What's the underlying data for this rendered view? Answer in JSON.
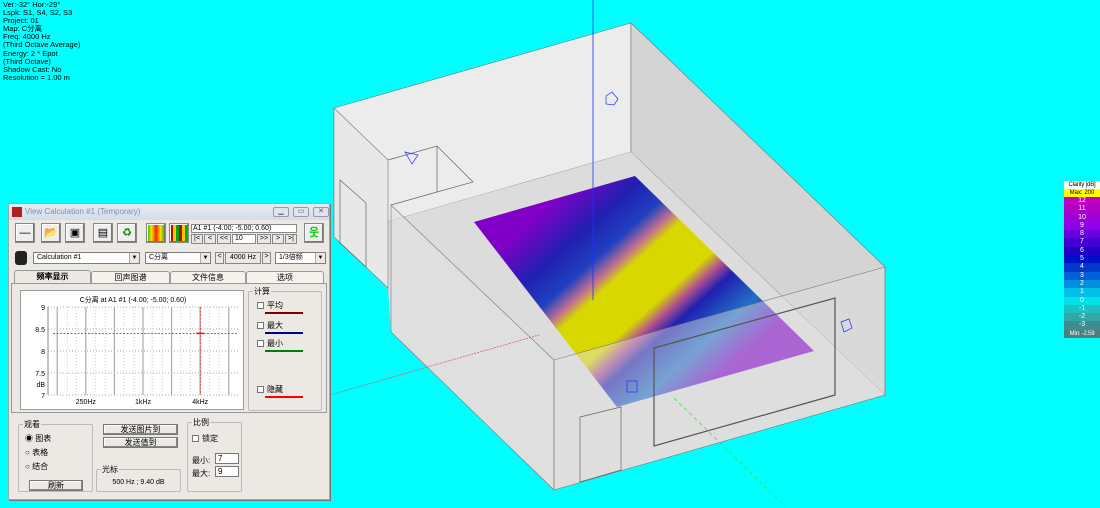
{
  "info": [
    "Ver:-32°   Hor:-29°",
    "Lspk: S1, S4, S2, S3",
    "Project: 01",
    "Map: C分离",
    "Freq: 4000 Hz",
    "(Third Octave Average)",
    "Energy: 2 * Epot",
    "(Third Octave)",
    "Shadow Cast: No",
    "Resolution =   1.00 m"
  ],
  "legend": {
    "header": "Clarity [dB]",
    "max": "Max:  200",
    "min": "Min: -2.59",
    "items": [
      {
        "label": "12",
        "color": "#c000c0"
      },
      {
        "label": "11",
        "color": "#b000c8"
      },
      {
        "label": "10",
        "color": "#a000d8"
      },
      {
        "label": "9",
        "color": "#9000e8"
      },
      {
        "label": "8",
        "color": "#6a00e0"
      },
      {
        "label": "7",
        "color": "#4400d0"
      },
      {
        "label": "6",
        "color": "#2000c8"
      },
      {
        "label": "5",
        "color": "#0010c8"
      },
      {
        "label": "4",
        "color": "#0038c8"
      },
      {
        "label": "3",
        "color": "#0060d8"
      },
      {
        "label": "2",
        "color": "#0090e0"
      },
      {
        "label": "1",
        "color": "#00c0e8"
      },
      {
        "label": "0",
        "color": "#00e0e8"
      },
      {
        "label": "-1",
        "color": "#20c0c0"
      },
      {
        "label": "-2",
        "color": "#30a8a8"
      },
      {
        "label": "-3",
        "color": "#408c8c"
      }
    ]
  },
  "dialog": {
    "title": "View Calculation #1 (Temporary)",
    "receiver": "A1 #1  (-4.00; -5.00; 0.60)",
    "nav": {
      "first": "|<",
      "prev": "<",
      "back": "<<",
      "value": "10",
      "fwd": ">>",
      "next": ">",
      "last": ">|"
    },
    "calc_select": "Calculation #1",
    "param_select": "C分离",
    "freq_prev": "<",
    "freq": "4000 Hz",
    "freq_next": ">",
    "band_select": "1/3倍频",
    "tabs": [
      "频率显示",
      "回声图谱",
      "文件信息",
      "选项"
    ],
    "chart_data": {
      "type": "line",
      "title": "C分离    at A1 #1  (-4.00; -5.00; 0.60)",
      "ylabel": "dB",
      "ylim": [
        7,
        9
      ],
      "yticks": [
        "9",
        "8.5",
        "8",
        "7.5",
        "7"
      ],
      "xticks": [
        "250Hz",
        "1kHz",
        "4kHz"
      ],
      "series": [
        {
          "x": "4kHz",
          "y": 8.4,
          "color": "#ff0000"
        }
      ]
    },
    "calc_group": {
      "label": "计算",
      "items": [
        {
          "label": "平均",
          "color": "#800000"
        },
        {
          "label": "最大",
          "color": "#000080"
        },
        {
          "label": "最小",
          "color": "#008000"
        },
        {
          "label": "隐藏",
          "color": "#ff0000"
        }
      ]
    },
    "view_group": {
      "label": "观看",
      "options": [
        "图表",
        "表格",
        "结合"
      ],
      "selected": "图表",
      "refresh": "刷新"
    },
    "send_image": "发送图片到",
    "send_values": "发送值到",
    "cursor_group": {
      "label": "光标",
      "value": "500 Hz ; 9.40 dB"
    },
    "scale_group": {
      "label": "比例",
      "lock": "锁定",
      "min_label": "最小:",
      "min": "7",
      "max_label": "最大:",
      "max": "9"
    }
  }
}
